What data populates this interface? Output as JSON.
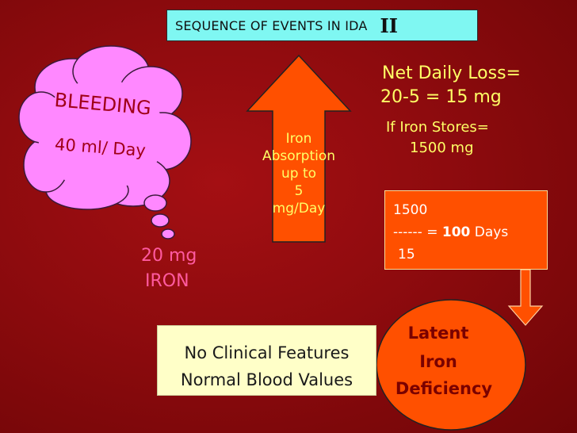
{
  "title": {
    "text": "SEQUENCE OF EVENTS IN IDA",
    "roman": "II"
  },
  "bleeding": {
    "label": "BLEEDING",
    "rate": "40 ml/ Day"
  },
  "iron_loss": {
    "line1": "20 mg",
    "line2": "IRON"
  },
  "absorption": {
    "lines": [
      "Iron",
      "Absorption",
      "up to",
      "5",
      "mg/Day"
    ]
  },
  "net_loss": {
    "line1": "Net Daily Loss=",
    "line2": "20-5 = 15 mg"
  },
  "stores": {
    "line1": "If Iron Stores=",
    "line2": "1500 mg"
  },
  "calc": {
    "numerator": "1500",
    "dashes": "------ = ",
    "result": "100",
    "unit": " Days",
    "denominator": "15"
  },
  "features": {
    "line1": "No Clinical Features",
    "line2": "Normal Blood Values"
  },
  "latent": {
    "line1": "Latent",
    "line2": "Iron",
    "line3": "Deficiency"
  },
  "colors": {
    "background": "#8e0b0e",
    "title_box": "#7ff7f2",
    "cloud": "#ff88ff",
    "arrow": "#ff5000",
    "text_yellow": "#ffff66",
    "text_pink": "#ff5aa0"
  }
}
